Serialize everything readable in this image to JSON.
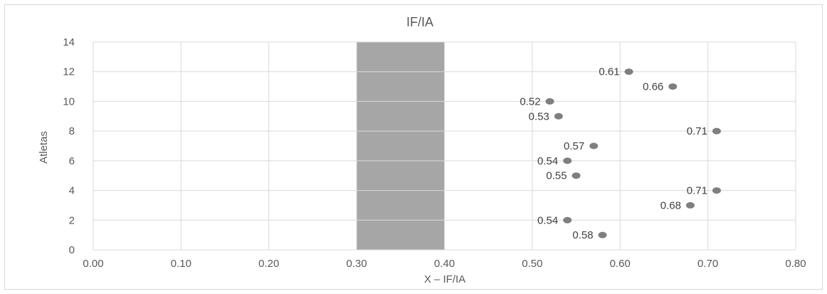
{
  "chart_data": {
    "type": "scatter",
    "title": "IF/IA",
    "xlabel": "X – IF/IA",
    "ylabel": "Atletas",
    "xlim": [
      0,
      0.8
    ],
    "ylim": [
      0,
      14
    ],
    "x_ticks": [
      "0.00",
      "0.10",
      "0.20",
      "0.30",
      "0.40",
      "0.50",
      "0.60",
      "0.70",
      "0.80"
    ],
    "y_ticks": [
      "0",
      "2",
      "4",
      "6",
      "8",
      "10",
      "12",
      "14"
    ],
    "grid": true,
    "shaded_band": {
      "x_from": 0.3,
      "x_to": 0.4,
      "color": "#a6a6a6"
    },
    "point_color": "#7f7f7f",
    "points": [
      {
        "x": 0.58,
        "y": 1,
        "label": "0.58"
      },
      {
        "x": 0.54,
        "y": 2,
        "label": "0.54"
      },
      {
        "x": 0.68,
        "y": 3,
        "label": "0.68"
      },
      {
        "x": 0.71,
        "y": 4,
        "label": "0.71"
      },
      {
        "x": 0.55,
        "y": 5,
        "label": "0.55"
      },
      {
        "x": 0.54,
        "y": 6,
        "label": "0.54"
      },
      {
        "x": 0.57,
        "y": 7,
        "label": "0.57"
      },
      {
        "x": 0.71,
        "y": 8,
        "label": "0.71"
      },
      {
        "x": 0.53,
        "y": 9,
        "label": "0.53"
      },
      {
        "x": 0.52,
        "y": 10,
        "label": "0.52"
      },
      {
        "x": 0.66,
        "y": 11,
        "label": "0.66"
      },
      {
        "x": 0.61,
        "y": 12,
        "label": "0.61"
      }
    ]
  }
}
